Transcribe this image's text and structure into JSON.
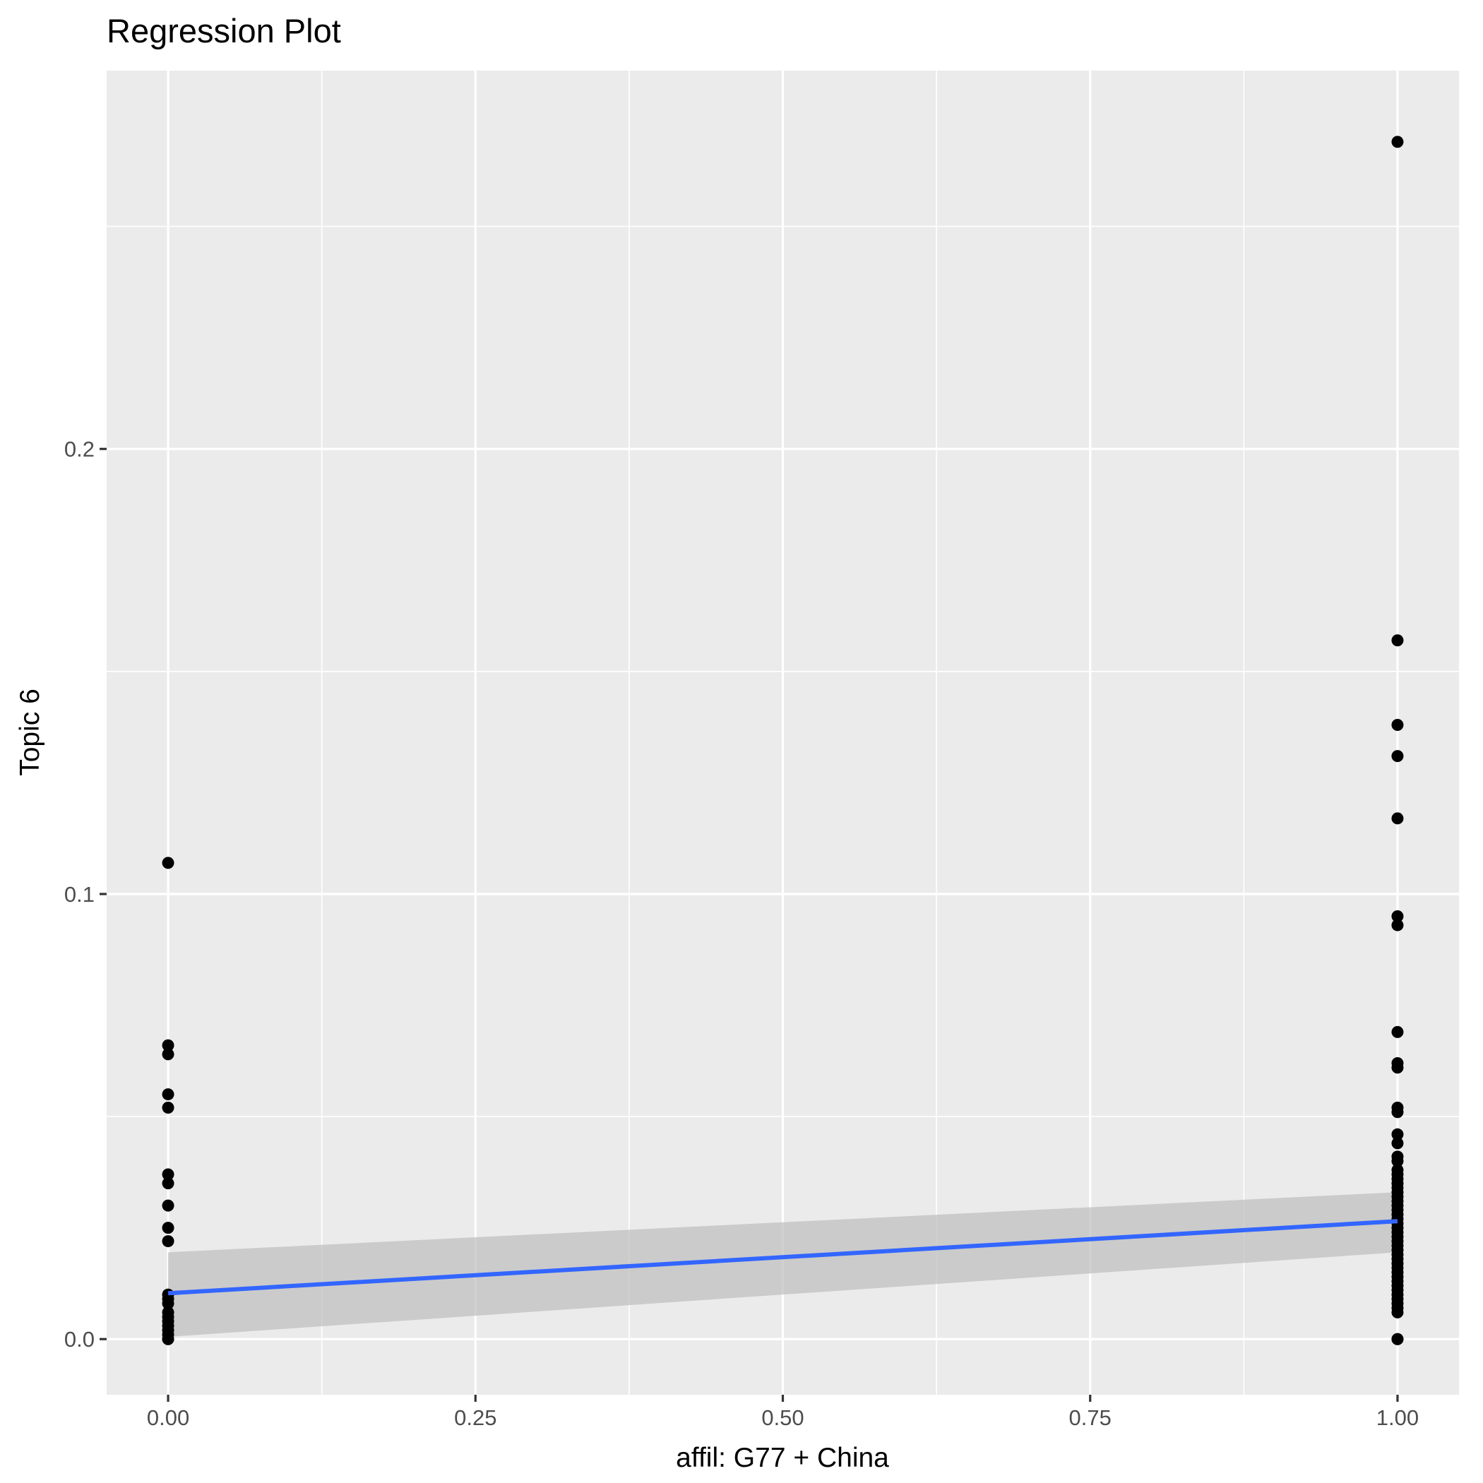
{
  "chart_data": {
    "type": "scatter",
    "title": "Regression Plot",
    "xlabel": "affil: G77 + China",
    "ylabel": "Topic 6",
    "xlim": [
      -0.05,
      1.05
    ],
    "ylim": [
      -0.0125,
      0.285
    ],
    "xticks": [
      {
        "value": 0.0,
        "label": "0.00"
      },
      {
        "value": 0.25,
        "label": "0.25"
      },
      {
        "value": 0.5,
        "label": "0.50"
      },
      {
        "value": 0.75,
        "label": "0.75"
      },
      {
        "value": 1.0,
        "label": "1.00"
      }
    ],
    "yticks": [
      {
        "value": 0.0,
        "label": "0.0"
      },
      {
        "value": 0.1,
        "label": "0.1"
      },
      {
        "value": 0.2,
        "label": "0.2"
      }
    ],
    "grid": true,
    "colors": {
      "panel": "#ebebeb",
      "points": "#000000",
      "fit_line": "#3366ff",
      "ribbon": "#bdbdbd"
    },
    "series": [
      {
        "x_value": 0,
        "values": [
          0.107,
          0.066,
          0.064,
          0.055,
          0.052,
          0.037,
          0.035,
          0.03,
          0.025,
          0.022,
          0.01,
          0.009,
          0.008,
          0.006,
          0.005,
          0.004,
          0.003,
          0.002,
          0.001,
          0.0,
          0.0
        ]
      },
      {
        "x_value": 1,
        "values": [
          0.269,
          0.157,
          0.138,
          0.131,
          0.117,
          0.095,
          0.093,
          0.069,
          0.062,
          0.061,
          0.052,
          0.051,
          0.046,
          0.044,
          0.041,
          0.04,
          0.038,
          0.037,
          0.036,
          0.035,
          0.034,
          0.033,
          0.032,
          0.031,
          0.03,
          0.029,
          0.028,
          0.027,
          0.026,
          0.025,
          0.024,
          0.023,
          0.022,
          0.021,
          0.02,
          0.019,
          0.018,
          0.017,
          0.016,
          0.015,
          0.014,
          0.013,
          0.012,
          0.011,
          0.01,
          0.009,
          0.008,
          0.007,
          0.006,
          0.0,
          0.0
        ]
      }
    ],
    "fit": {
      "x": [
        0,
        1
      ],
      "y": [
        0.0103,
        0.0265
      ],
      "ci_lower": [
        0.0005,
        0.0195
      ],
      "ci_upper": [
        0.0195,
        0.033
      ]
    }
  }
}
